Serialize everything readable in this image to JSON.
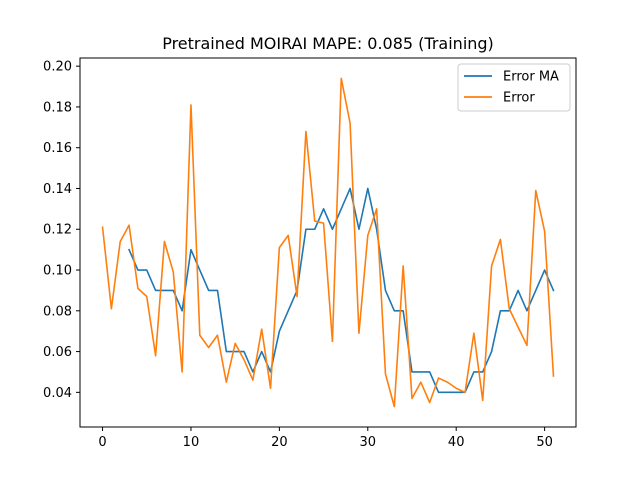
{
  "chart_data": {
    "type": "line",
    "title": "Pretrained MOIRAI MAPE: 0.085 (Training)",
    "xlabel": "",
    "ylabel": "",
    "xlim": [
      -2.55,
      53.55
    ],
    "ylim": [
      0.023,
      0.204
    ],
    "grid": false,
    "legend_position": "top-right",
    "x_ticks": [
      0,
      10,
      20,
      30,
      40,
      50
    ],
    "x_tick_labels": [
      "0",
      "10",
      "20",
      "30",
      "40",
      "50"
    ],
    "y_ticks": [
      0.04,
      0.06,
      0.08,
      0.1,
      0.12,
      0.14,
      0.16,
      0.18,
      0.2
    ],
    "y_tick_labels": [
      "0.04",
      "0.06",
      "0.08",
      "0.10",
      "0.12",
      "0.14",
      "0.16",
      "0.18",
      "0.20"
    ],
    "series": [
      {
        "name": "Error MA",
        "color": "#1f77b4",
        "x": [
          3,
          4,
          5,
          6,
          7,
          8,
          9,
          10,
          11,
          12,
          13,
          14,
          15,
          16,
          17,
          18,
          19,
          20,
          21,
          22,
          23,
          24,
          25,
          26,
          27,
          28,
          29,
          30,
          31,
          32,
          33,
          34,
          35,
          36,
          37,
          38,
          39,
          40,
          41,
          42,
          43,
          44,
          45,
          46,
          47,
          48,
          49,
          50,
          51
        ],
        "values": [
          0.11,
          0.1,
          0.1,
          0.09,
          0.09,
          0.09,
          0.08,
          0.11,
          0.1,
          0.09,
          0.09,
          0.06,
          0.06,
          0.06,
          0.05,
          0.06,
          0.05,
          0.07,
          0.08,
          0.09,
          0.12,
          0.12,
          0.13,
          0.12,
          0.13,
          0.14,
          0.12,
          0.14,
          0.12,
          0.09,
          0.08,
          0.08,
          0.05,
          0.05,
          0.05,
          0.04,
          0.04,
          0.04,
          0.04,
          0.05,
          0.05,
          0.06,
          0.08,
          0.08,
          0.09,
          0.08,
          0.09,
          0.1,
          0.09
        ]
      },
      {
        "name": "Error",
        "color": "#ff7f0e",
        "x": [
          0,
          1,
          2,
          3,
          4,
          5,
          6,
          7,
          8,
          9,
          10,
          11,
          12,
          13,
          14,
          15,
          16,
          17,
          18,
          19,
          20,
          21,
          22,
          23,
          24,
          25,
          26,
          27,
          28,
          29,
          30,
          31,
          32,
          33,
          34,
          35,
          36,
          37,
          38,
          39,
          40,
          41,
          42,
          43,
          44,
          45,
          46,
          47,
          48,
          49,
          50,
          51
        ],
        "values": [
          0.121,
          0.081,
          0.114,
          0.122,
          0.091,
          0.087,
          0.058,
          0.114,
          0.099,
          0.05,
          0.181,
          0.068,
          0.062,
          0.068,
          0.045,
          0.064,
          0.056,
          0.046,
          0.071,
          0.042,
          0.111,
          0.117,
          0.087,
          0.168,
          0.124,
          0.123,
          0.065,
          0.194,
          0.172,
          0.069,
          0.117,
          0.13,
          0.049,
          0.033,
          0.102,
          0.037,
          0.045,
          0.035,
          0.047,
          0.045,
          0.042,
          0.04,
          0.069,
          0.036,
          0.102,
          0.115,
          0.081,
          0.072,
          0.063,
          0.139,
          0.119,
          0.048
        ]
      }
    ]
  }
}
